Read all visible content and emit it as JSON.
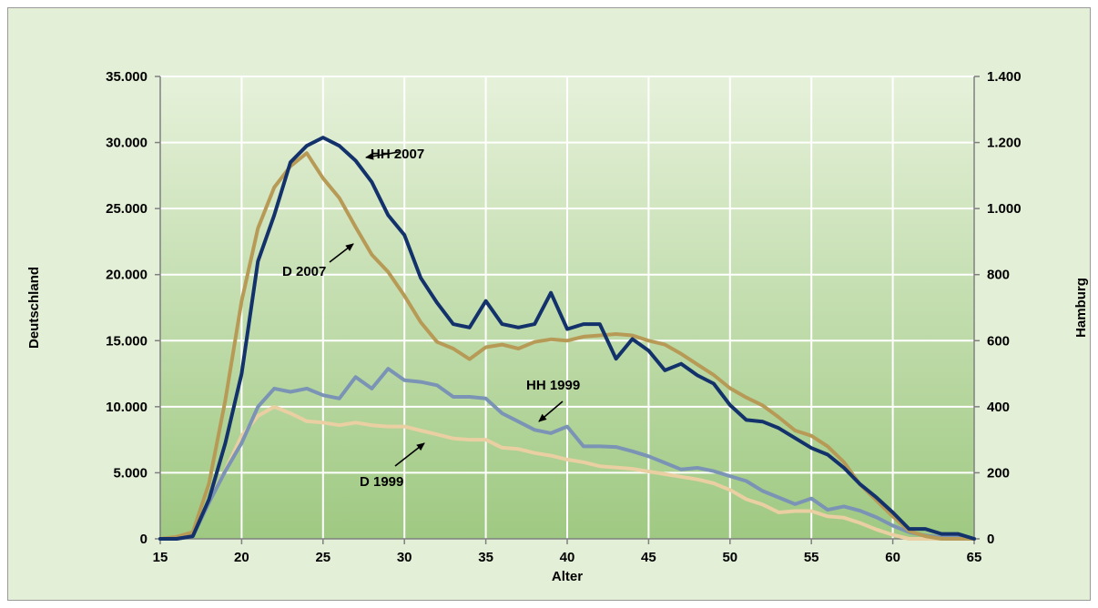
{
  "chart_data": {
    "type": "line",
    "title": "",
    "xlabel": "Alter",
    "ylabel_left": "Deutschland",
    "ylabel_right": "Hamburg",
    "xlim": [
      15,
      65
    ],
    "ylim_left": [
      0,
      35000
    ],
    "ylim_right": [
      0,
      1400
    ],
    "x_ticks": [
      15,
      20,
      25,
      30,
      35,
      40,
      45,
      50,
      55,
      60,
      65
    ],
    "x_tick_labels": [
      "15",
      "20",
      "25",
      "30",
      "35",
      "40",
      "45",
      "50",
      "55",
      "60",
      "65"
    ],
    "y_left_ticks": [
      0,
      5000,
      10000,
      15000,
      20000,
      25000,
      30000,
      35000
    ],
    "y_left_tick_labels": [
      "0",
      "5.000",
      "10.000",
      "15.000",
      "20.000",
      "25.000",
      "30.000",
      "35.000"
    ],
    "y_right_ticks": [
      0,
      200,
      400,
      600,
      800,
      1000,
      1200,
      1400
    ],
    "y_right_tick_labels": [
      "0",
      "200",
      "400",
      "600",
      "800",
      "1.000",
      "1.200",
      "1.400"
    ],
    "grid": true,
    "x": [
      15,
      16,
      17,
      18,
      19,
      20,
      21,
      22,
      23,
      24,
      25,
      26,
      27,
      28,
      29,
      30,
      31,
      32,
      33,
      34,
      35,
      36,
      37,
      38,
      39,
      40,
      41,
      42,
      43,
      44,
      45,
      46,
      47,
      48,
      49,
      50,
      51,
      52,
      53,
      54,
      55,
      56,
      57,
      58,
      59,
      60,
      61,
      62,
      63,
      64,
      65
    ],
    "series": [
      {
        "name": "HH 2007",
        "axis": "right",
        "color": "#13326b",
        "values": [
          0,
          0,
          8,
          120,
          290,
          500,
          840,
          980,
          1140,
          1190,
          1215,
          1190,
          1145,
          1080,
          980,
          920,
          790,
          715,
          650,
          640,
          720,
          650,
          640,
          650,
          745,
          635,
          650,
          650,
          545,
          605,
          570,
          510,
          530,
          495,
          470,
          405,
          360,
          355,
          335,
          305,
          275,
          255,
          215,
          165,
          125,
          80,
          30,
          30,
          15,
          15,
          0
        ]
      },
      {
        "name": "D 2007",
        "axis": "left",
        "color": "#b89a57",
        "values": [
          0,
          150,
          500,
          4200,
          10500,
          18000,
          23500,
          26600,
          28200,
          29200,
          27300,
          25800,
          23600,
          21500,
          20200,
          18400,
          16400,
          14900,
          14400,
          13600,
          14500,
          14700,
          14400,
          14900,
          15100,
          15000,
          15300,
          15400,
          15500,
          15400,
          15000,
          14700,
          14000,
          13200,
          12400,
          11400,
          10700,
          10100,
          9200,
          8200,
          7800,
          7000,
          5800,
          4100,
          2900,
          1700,
          600,
          200,
          0,
          0,
          0
        ]
      },
      {
        "name": "HH 1999",
        "axis": "right",
        "color": "#7b93b5",
        "values": [
          0,
          0,
          8,
          110,
          205,
          290,
          400,
          455,
          445,
          455,
          435,
          425,
          490,
          455,
          515,
          480,
          475,
          465,
          430,
          430,
          425,
          380,
          355,
          330,
          320,
          340,
          280,
          280,
          278,
          265,
          250,
          230,
          210,
          215,
          205,
          190,
          175,
          145,
          125,
          105,
          122,
          88,
          98,
          85,
          65,
          40,
          20,
          10,
          5,
          5,
          0
        ]
      },
      {
        "name": "D 1999",
        "axis": "left",
        "color": "#e9cfa2",
        "values": [
          0,
          100,
          400,
          2800,
          5200,
          7800,
          9300,
          10000,
          9500,
          8900,
          8800,
          8600,
          8800,
          8600,
          8500,
          8500,
          8200,
          7900,
          7600,
          7500,
          7500,
          6900,
          6800,
          6500,
          6300,
          6000,
          5800,
          5500,
          5400,
          5300,
          5100,
          4900,
          4700,
          4500,
          4200,
          3700,
          3000,
          2600,
          2000,
          2100,
          2100,
          1700,
          1600,
          1200,
          700,
          300,
          0,
          0,
          0,
          0,
          0
        ]
      }
    ],
    "annotations": [
      {
        "text": "HH 2007",
        "series": "HH 2007"
      },
      {
        "text": "D 2007",
        "series": "D 2007"
      },
      {
        "text": "HH 1999",
        "series": "HH 1999"
      },
      {
        "text": "D  1999",
        "series": "D 1999"
      }
    ],
    "colors": {
      "frame_background": "#e3efd6",
      "plot_background": "#a9cf8d",
      "grid": "#ffffff",
      "axis": "#808080"
    }
  }
}
